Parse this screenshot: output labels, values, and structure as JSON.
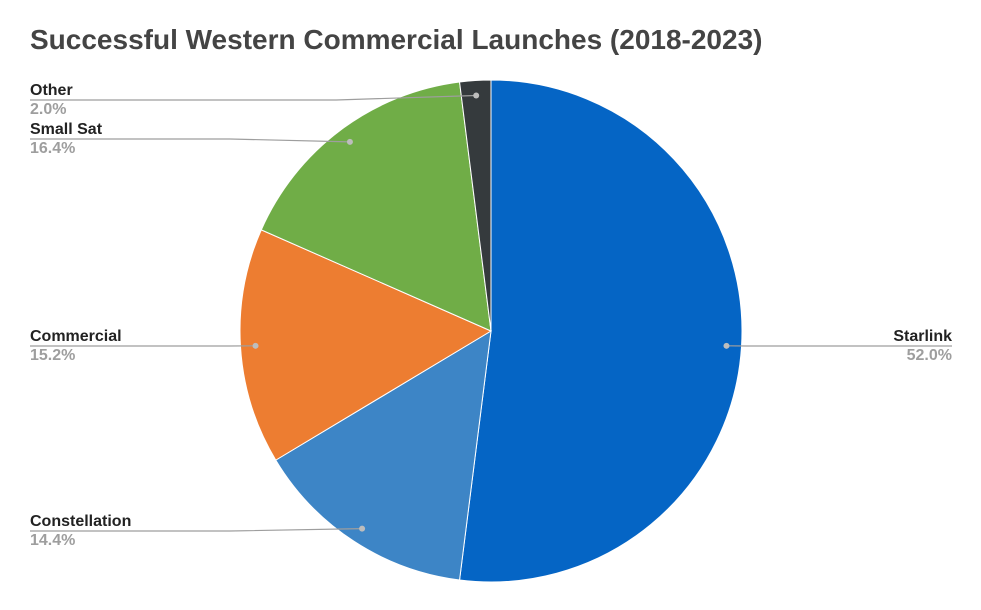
{
  "chart_data": {
    "type": "pie",
    "title": "Successful Western Commercial Launches (2018-2023)",
    "slices": [
      {
        "label": "Starlink",
        "value": 52.0,
        "display": "52.0%",
        "color": "#0565c5"
      },
      {
        "label": "Constellation",
        "value": 14.4,
        "display": "14.4%",
        "color": "#3d85c6"
      },
      {
        "label": "Commercial",
        "value": 15.2,
        "display": "15.2%",
        "color": "#ed7d31"
      },
      {
        "label": "Small Sat",
        "value": 16.4,
        "display": "16.4%",
        "color": "#70ad47"
      },
      {
        "label": "Other",
        "value": 2.0,
        "display": "2.0%",
        "color": "#353a3d"
      }
    ],
    "start": "12 o'clock",
    "direction": "clockwise",
    "legend": "none (leader-line labels)"
  }
}
